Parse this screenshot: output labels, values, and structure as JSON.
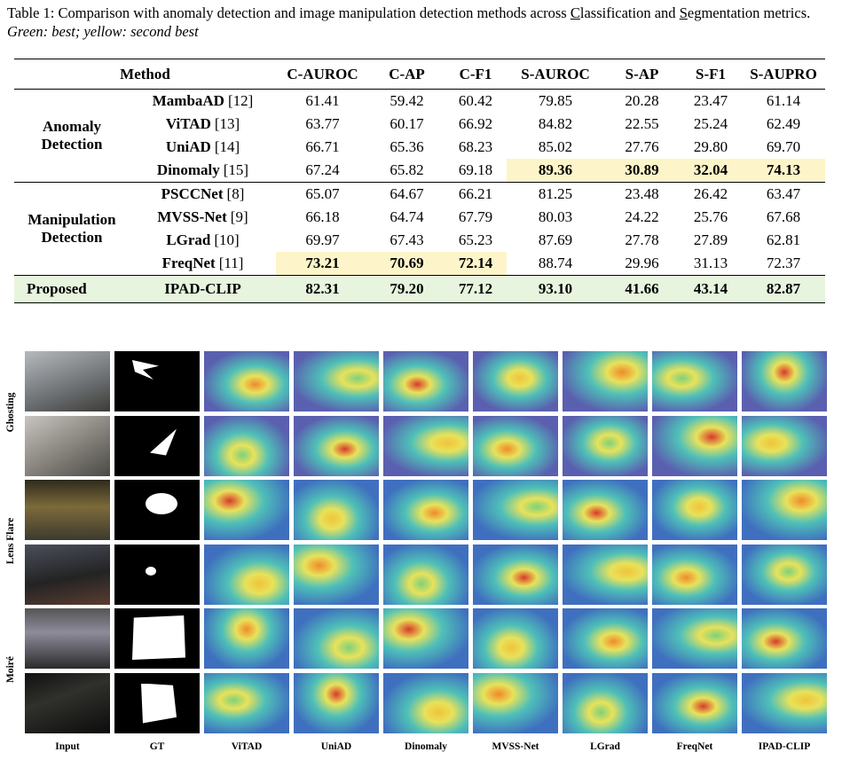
{
  "caption": {
    "parts": [
      {
        "text": "Table 1: Comparison with anomaly detection and image manipulation detection methods across ",
        "style": "normal"
      },
      {
        "text": "C",
        "style": "underline"
      },
      {
        "text": "lassification and ",
        "style": "normal"
      },
      {
        "text": "S",
        "style": "underline"
      },
      {
        "text": "egmentation metrics. ",
        "style": "normal"
      },
      {
        "text": "Green: best; yellow: second best",
        "style": "italic"
      }
    ]
  },
  "table": {
    "colors": {
      "best": "#e7f5de",
      "second": "#fdf5c9"
    },
    "headers": [
      "Method",
      "C-AUROC",
      "C-AP",
      "C-F1",
      "S-AUROC",
      "S-AP",
      "S-F1",
      "S-AUPRO"
    ],
    "groups": [
      {
        "name": "Anomaly Detection",
        "rows": [
          {
            "method": "MambaAD",
            "ref": "[12]",
            "values": [
              "61.41",
              "59.42",
              "60.42",
              "79.85",
              "20.28",
              "23.47",
              "61.14"
            ],
            "second_best": []
          },
          {
            "method": "ViTAD",
            "ref": "[13]",
            "values": [
              "63.77",
              "60.17",
              "66.92",
              "84.82",
              "22.55",
              "25.24",
              "62.49"
            ],
            "second_best": []
          },
          {
            "method": "UniAD",
            "ref": "[14]",
            "values": [
              "66.71",
              "65.36",
              "68.23",
              "85.02",
              "27.76",
              "29.80",
              "69.70"
            ],
            "second_best": []
          },
          {
            "method": "Dinomaly",
            "ref": "[15]",
            "values": [
              "67.24",
              "65.82",
              "69.18",
              "89.36",
              "30.89",
              "32.04",
              "74.13"
            ],
            "second_best": [
              3,
              4,
              5,
              6
            ]
          }
        ]
      },
      {
        "name": "Manipulation Detection",
        "rows": [
          {
            "method": "PSCCNet",
            "ref": "[8]",
            "values": [
              "65.07",
              "64.67",
              "66.21",
              "81.25",
              "23.48",
              "26.42",
              "63.47"
            ],
            "second_best": []
          },
          {
            "method": "MVSS-Net",
            "ref": "[9]",
            "values": [
              "66.18",
              "64.74",
              "67.79",
              "80.03",
              "24.22",
              "25.76",
              "67.68"
            ],
            "second_best": []
          },
          {
            "method": "LGrad",
            "ref": "[10]",
            "values": [
              "69.97",
              "67.43",
              "65.23",
              "87.69",
              "27.78",
              "27.89",
              "62.81"
            ],
            "second_best": []
          },
          {
            "method": "FreqNet",
            "ref": "[11]",
            "values": [
              "73.21",
              "70.69",
              "72.14",
              "88.74",
              "29.96",
              "31.13",
              "72.37"
            ],
            "second_best": [
              0,
              1,
              2
            ]
          }
        ]
      }
    ],
    "proposed": {
      "name": "Proposed",
      "method": "IPAD-CLIP",
      "values": [
        "82.31",
        "79.20",
        "77.12",
        "93.10",
        "41.66",
        "43.14",
        "82.87"
      ]
    }
  },
  "figure": {
    "row_labels": [
      "Ghosting",
      "Lens Flare",
      "Moiré"
    ],
    "column_labels": [
      "Input",
      "GT",
      "ViTAD",
      "UniAD",
      "Dinomaly",
      "MVSS-Net",
      "LGrad",
      "FreqNet",
      "IPAD-CLIP"
    ]
  }
}
